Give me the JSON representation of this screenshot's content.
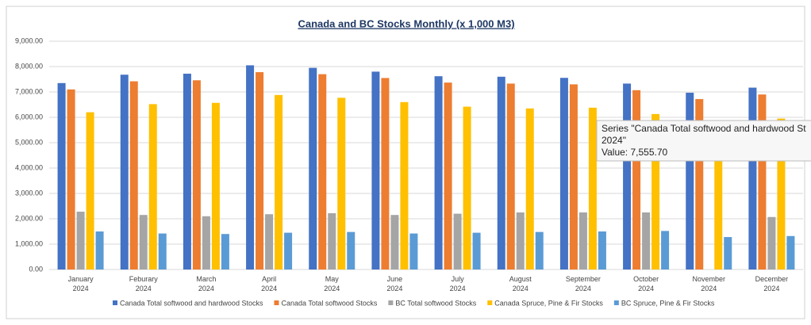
{
  "chart_data": {
    "type": "bar",
    "title": "Canada and BC Stocks  Monthly (x 1,000 M3)",
    "categories": [
      "January 2024",
      "Feburary 2024",
      "March 2024",
      "April 2024",
      "May 2024",
      "June 2024",
      "July 2024",
      "August 2024",
      "September 2024",
      "October 2024",
      "November 2024",
      "December 2024"
    ],
    "series": [
      {
        "name": "Canada Total softwood and hardwood Stocks",
        "color": "#4472c4",
        "values": [
          7350,
          7680,
          7720,
          8050,
          7950,
          7800,
          7620,
          7600,
          7555.7,
          7330,
          6970,
          7170
        ]
      },
      {
        "name": "Canada Total softwood Stocks",
        "color": "#ed7d31",
        "values": [
          7100,
          7420,
          7460,
          7780,
          7700,
          7550,
          7370,
          7330,
          7300,
          7070,
          6720,
          6900
        ]
      },
      {
        "name": "BC Total softwood Stocks",
        "color": "#a5a5a5",
        "values": [
          2280,
          2150,
          2100,
          2180,
          2220,
          2150,
          2200,
          2250,
          2250,
          2250,
          null,
          2070
        ]
      },
      {
        "name": "Canada Spruce, Pine & Fir Stocks",
        "color": "#ffc000",
        "values": [
          6200,
          6520,
          6570,
          6880,
          6770,
          6600,
          6420,
          6350,
          6380,
          6130,
          5850,
          5950
        ]
      },
      {
        "name": "BC Spruce, Pine & Fir Stocks",
        "color": "#5b9bd5",
        "values": [
          1500,
          1420,
          1400,
          1450,
          1480,
          1420,
          1450,
          1480,
          1500,
          1520,
          1280,
          1320
        ]
      }
    ],
    "ylim": [
      0,
      9000
    ],
    "yticks": [
      {
        "value": 0,
        "label": "0.00"
      },
      {
        "value": 1000,
        "label": "1,000.00"
      },
      {
        "value": 2000,
        "label": "2,000.00"
      },
      {
        "value": 3000,
        "label": "3,000.00"
      },
      {
        "value": 4000,
        "label": "4,000.00"
      },
      {
        "value": 5000,
        "label": "5,000.00"
      },
      {
        "value": 6000,
        "label": "6,000.00"
      },
      {
        "value": 7000,
        "label": "7,000.00"
      },
      {
        "value": 8000,
        "label": "8,000.00"
      },
      {
        "value": 9000,
        "label": "9,000.00"
      }
    ],
    "grid": true,
    "legend": "bottom",
    "tooltip": {
      "lines": [
        "Series \"Canada Total softwood and hardwood St",
        "2024\"",
        "Value: 7,555.70"
      ]
    }
  }
}
